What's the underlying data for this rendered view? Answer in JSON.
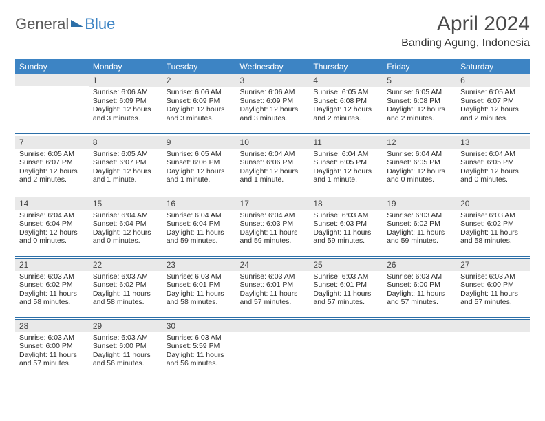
{
  "brand": {
    "part1": "General",
    "part2": "Blue"
  },
  "title": "April 2024",
  "location": "Banding Agung, Indonesia",
  "headers": [
    "Sunday",
    "Monday",
    "Tuesday",
    "Wednesday",
    "Thursday",
    "Friday",
    "Saturday"
  ],
  "header_bg": "#3d84c4",
  "header_fg": "#ffffff",
  "daynum_bg": "#e9e9e9",
  "rule_color": "#2c6fa8",
  "weeks": [
    [
      {
        "n": "",
        "sr": "",
        "ss": "",
        "dl": ""
      },
      {
        "n": "1",
        "sr": "Sunrise: 6:06 AM",
        "ss": "Sunset: 6:09 PM",
        "dl": "Daylight: 12 hours and 3 minutes."
      },
      {
        "n": "2",
        "sr": "Sunrise: 6:06 AM",
        "ss": "Sunset: 6:09 PM",
        "dl": "Daylight: 12 hours and 3 minutes."
      },
      {
        "n": "3",
        "sr": "Sunrise: 6:06 AM",
        "ss": "Sunset: 6:09 PM",
        "dl": "Daylight: 12 hours and 3 minutes."
      },
      {
        "n": "4",
        "sr": "Sunrise: 6:05 AM",
        "ss": "Sunset: 6:08 PM",
        "dl": "Daylight: 12 hours and 2 minutes."
      },
      {
        "n": "5",
        "sr": "Sunrise: 6:05 AM",
        "ss": "Sunset: 6:08 PM",
        "dl": "Daylight: 12 hours and 2 minutes."
      },
      {
        "n": "6",
        "sr": "Sunrise: 6:05 AM",
        "ss": "Sunset: 6:07 PM",
        "dl": "Daylight: 12 hours and 2 minutes."
      }
    ],
    [
      {
        "n": "7",
        "sr": "Sunrise: 6:05 AM",
        "ss": "Sunset: 6:07 PM",
        "dl": "Daylight: 12 hours and 2 minutes."
      },
      {
        "n": "8",
        "sr": "Sunrise: 6:05 AM",
        "ss": "Sunset: 6:07 PM",
        "dl": "Daylight: 12 hours and 1 minute."
      },
      {
        "n": "9",
        "sr": "Sunrise: 6:05 AM",
        "ss": "Sunset: 6:06 PM",
        "dl": "Daylight: 12 hours and 1 minute."
      },
      {
        "n": "10",
        "sr": "Sunrise: 6:04 AM",
        "ss": "Sunset: 6:06 PM",
        "dl": "Daylight: 12 hours and 1 minute."
      },
      {
        "n": "11",
        "sr": "Sunrise: 6:04 AM",
        "ss": "Sunset: 6:05 PM",
        "dl": "Daylight: 12 hours and 1 minute."
      },
      {
        "n": "12",
        "sr": "Sunrise: 6:04 AM",
        "ss": "Sunset: 6:05 PM",
        "dl": "Daylight: 12 hours and 0 minutes."
      },
      {
        "n": "13",
        "sr": "Sunrise: 6:04 AM",
        "ss": "Sunset: 6:05 PM",
        "dl": "Daylight: 12 hours and 0 minutes."
      }
    ],
    [
      {
        "n": "14",
        "sr": "Sunrise: 6:04 AM",
        "ss": "Sunset: 6:04 PM",
        "dl": "Daylight: 12 hours and 0 minutes."
      },
      {
        "n": "15",
        "sr": "Sunrise: 6:04 AM",
        "ss": "Sunset: 6:04 PM",
        "dl": "Daylight: 12 hours and 0 minutes."
      },
      {
        "n": "16",
        "sr": "Sunrise: 6:04 AM",
        "ss": "Sunset: 6:04 PM",
        "dl": "Daylight: 11 hours and 59 minutes."
      },
      {
        "n": "17",
        "sr": "Sunrise: 6:04 AM",
        "ss": "Sunset: 6:03 PM",
        "dl": "Daylight: 11 hours and 59 minutes."
      },
      {
        "n": "18",
        "sr": "Sunrise: 6:03 AM",
        "ss": "Sunset: 6:03 PM",
        "dl": "Daylight: 11 hours and 59 minutes."
      },
      {
        "n": "19",
        "sr": "Sunrise: 6:03 AM",
        "ss": "Sunset: 6:02 PM",
        "dl": "Daylight: 11 hours and 59 minutes."
      },
      {
        "n": "20",
        "sr": "Sunrise: 6:03 AM",
        "ss": "Sunset: 6:02 PM",
        "dl": "Daylight: 11 hours and 58 minutes."
      }
    ],
    [
      {
        "n": "21",
        "sr": "Sunrise: 6:03 AM",
        "ss": "Sunset: 6:02 PM",
        "dl": "Daylight: 11 hours and 58 minutes."
      },
      {
        "n": "22",
        "sr": "Sunrise: 6:03 AM",
        "ss": "Sunset: 6:02 PM",
        "dl": "Daylight: 11 hours and 58 minutes."
      },
      {
        "n": "23",
        "sr": "Sunrise: 6:03 AM",
        "ss": "Sunset: 6:01 PM",
        "dl": "Daylight: 11 hours and 58 minutes."
      },
      {
        "n": "24",
        "sr": "Sunrise: 6:03 AM",
        "ss": "Sunset: 6:01 PM",
        "dl": "Daylight: 11 hours and 57 minutes."
      },
      {
        "n": "25",
        "sr": "Sunrise: 6:03 AM",
        "ss": "Sunset: 6:01 PM",
        "dl": "Daylight: 11 hours and 57 minutes."
      },
      {
        "n": "26",
        "sr": "Sunrise: 6:03 AM",
        "ss": "Sunset: 6:00 PM",
        "dl": "Daylight: 11 hours and 57 minutes."
      },
      {
        "n": "27",
        "sr": "Sunrise: 6:03 AM",
        "ss": "Sunset: 6:00 PM",
        "dl": "Daylight: 11 hours and 57 minutes."
      }
    ],
    [
      {
        "n": "28",
        "sr": "Sunrise: 6:03 AM",
        "ss": "Sunset: 6:00 PM",
        "dl": "Daylight: 11 hours and 57 minutes."
      },
      {
        "n": "29",
        "sr": "Sunrise: 6:03 AM",
        "ss": "Sunset: 6:00 PM",
        "dl": "Daylight: 11 hours and 56 minutes."
      },
      {
        "n": "30",
        "sr": "Sunrise: 6:03 AM",
        "ss": "Sunset: 5:59 PM",
        "dl": "Daylight: 11 hours and 56 minutes."
      },
      {
        "n": "",
        "sr": "",
        "ss": "",
        "dl": ""
      },
      {
        "n": "",
        "sr": "",
        "ss": "",
        "dl": ""
      },
      {
        "n": "",
        "sr": "",
        "ss": "",
        "dl": ""
      },
      {
        "n": "",
        "sr": "",
        "ss": "",
        "dl": ""
      }
    ]
  ]
}
